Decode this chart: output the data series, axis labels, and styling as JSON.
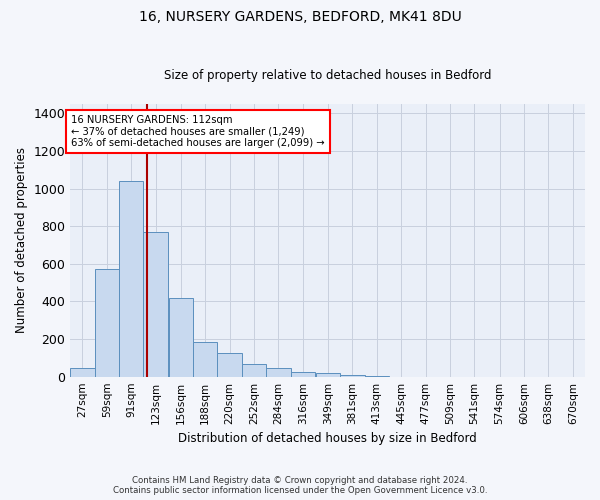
{
  "title1": "16, NURSERY GARDENS, BEDFORD, MK41 8DU",
  "title2": "Size of property relative to detached houses in Bedford",
  "xlabel": "Distribution of detached houses by size in Bedford",
  "ylabel": "Number of detached properties",
  "annotation_line1": "16 NURSERY GARDENS: 112sqm",
  "annotation_line2": "← 37% of detached houses are smaller (1,249)",
  "annotation_line3": "63% of semi-detached houses are larger (2,099) →",
  "bin_labels": [
    "27sqm",
    "59sqm",
    "91sqm",
    "123sqm",
    "156sqm",
    "188sqm",
    "220sqm",
    "252sqm",
    "284sqm",
    "316sqm",
    "349sqm",
    "381sqm",
    "413sqm",
    "445sqm",
    "477sqm",
    "509sqm",
    "541sqm",
    "574sqm",
    "606sqm",
    "638sqm",
    "670sqm"
  ],
  "bin_edges": [
    27,
    59,
    91,
    123,
    156,
    188,
    220,
    252,
    284,
    316,
    349,
    381,
    413,
    445,
    477,
    509,
    541,
    574,
    606,
    638,
    670
  ],
  "bar_heights": [
    48,
    570,
    1040,
    770,
    420,
    183,
    125,
    65,
    48,
    25,
    20,
    10,
    5,
    0,
    0,
    0,
    0,
    0,
    0,
    0,
    0
  ],
  "bar_color": "#c8d9ef",
  "bar_edge_color": "#5b8fbe",
  "vline_color": "#aa0000",
  "vline_x": 112,
  "ylim": [
    0,
    1450
  ],
  "yticks": [
    0,
    200,
    400,
    600,
    800,
    1000,
    1200,
    1400
  ],
  "grid_color": "#c8d0de",
  "bg_color": "#eaeff8",
  "fig_bg_color": "#f4f6fb",
  "footnote1": "Contains HM Land Registry data © Crown copyright and database right 2024.",
  "footnote2": "Contains public sector information licensed under the Open Government Licence v3.0."
}
